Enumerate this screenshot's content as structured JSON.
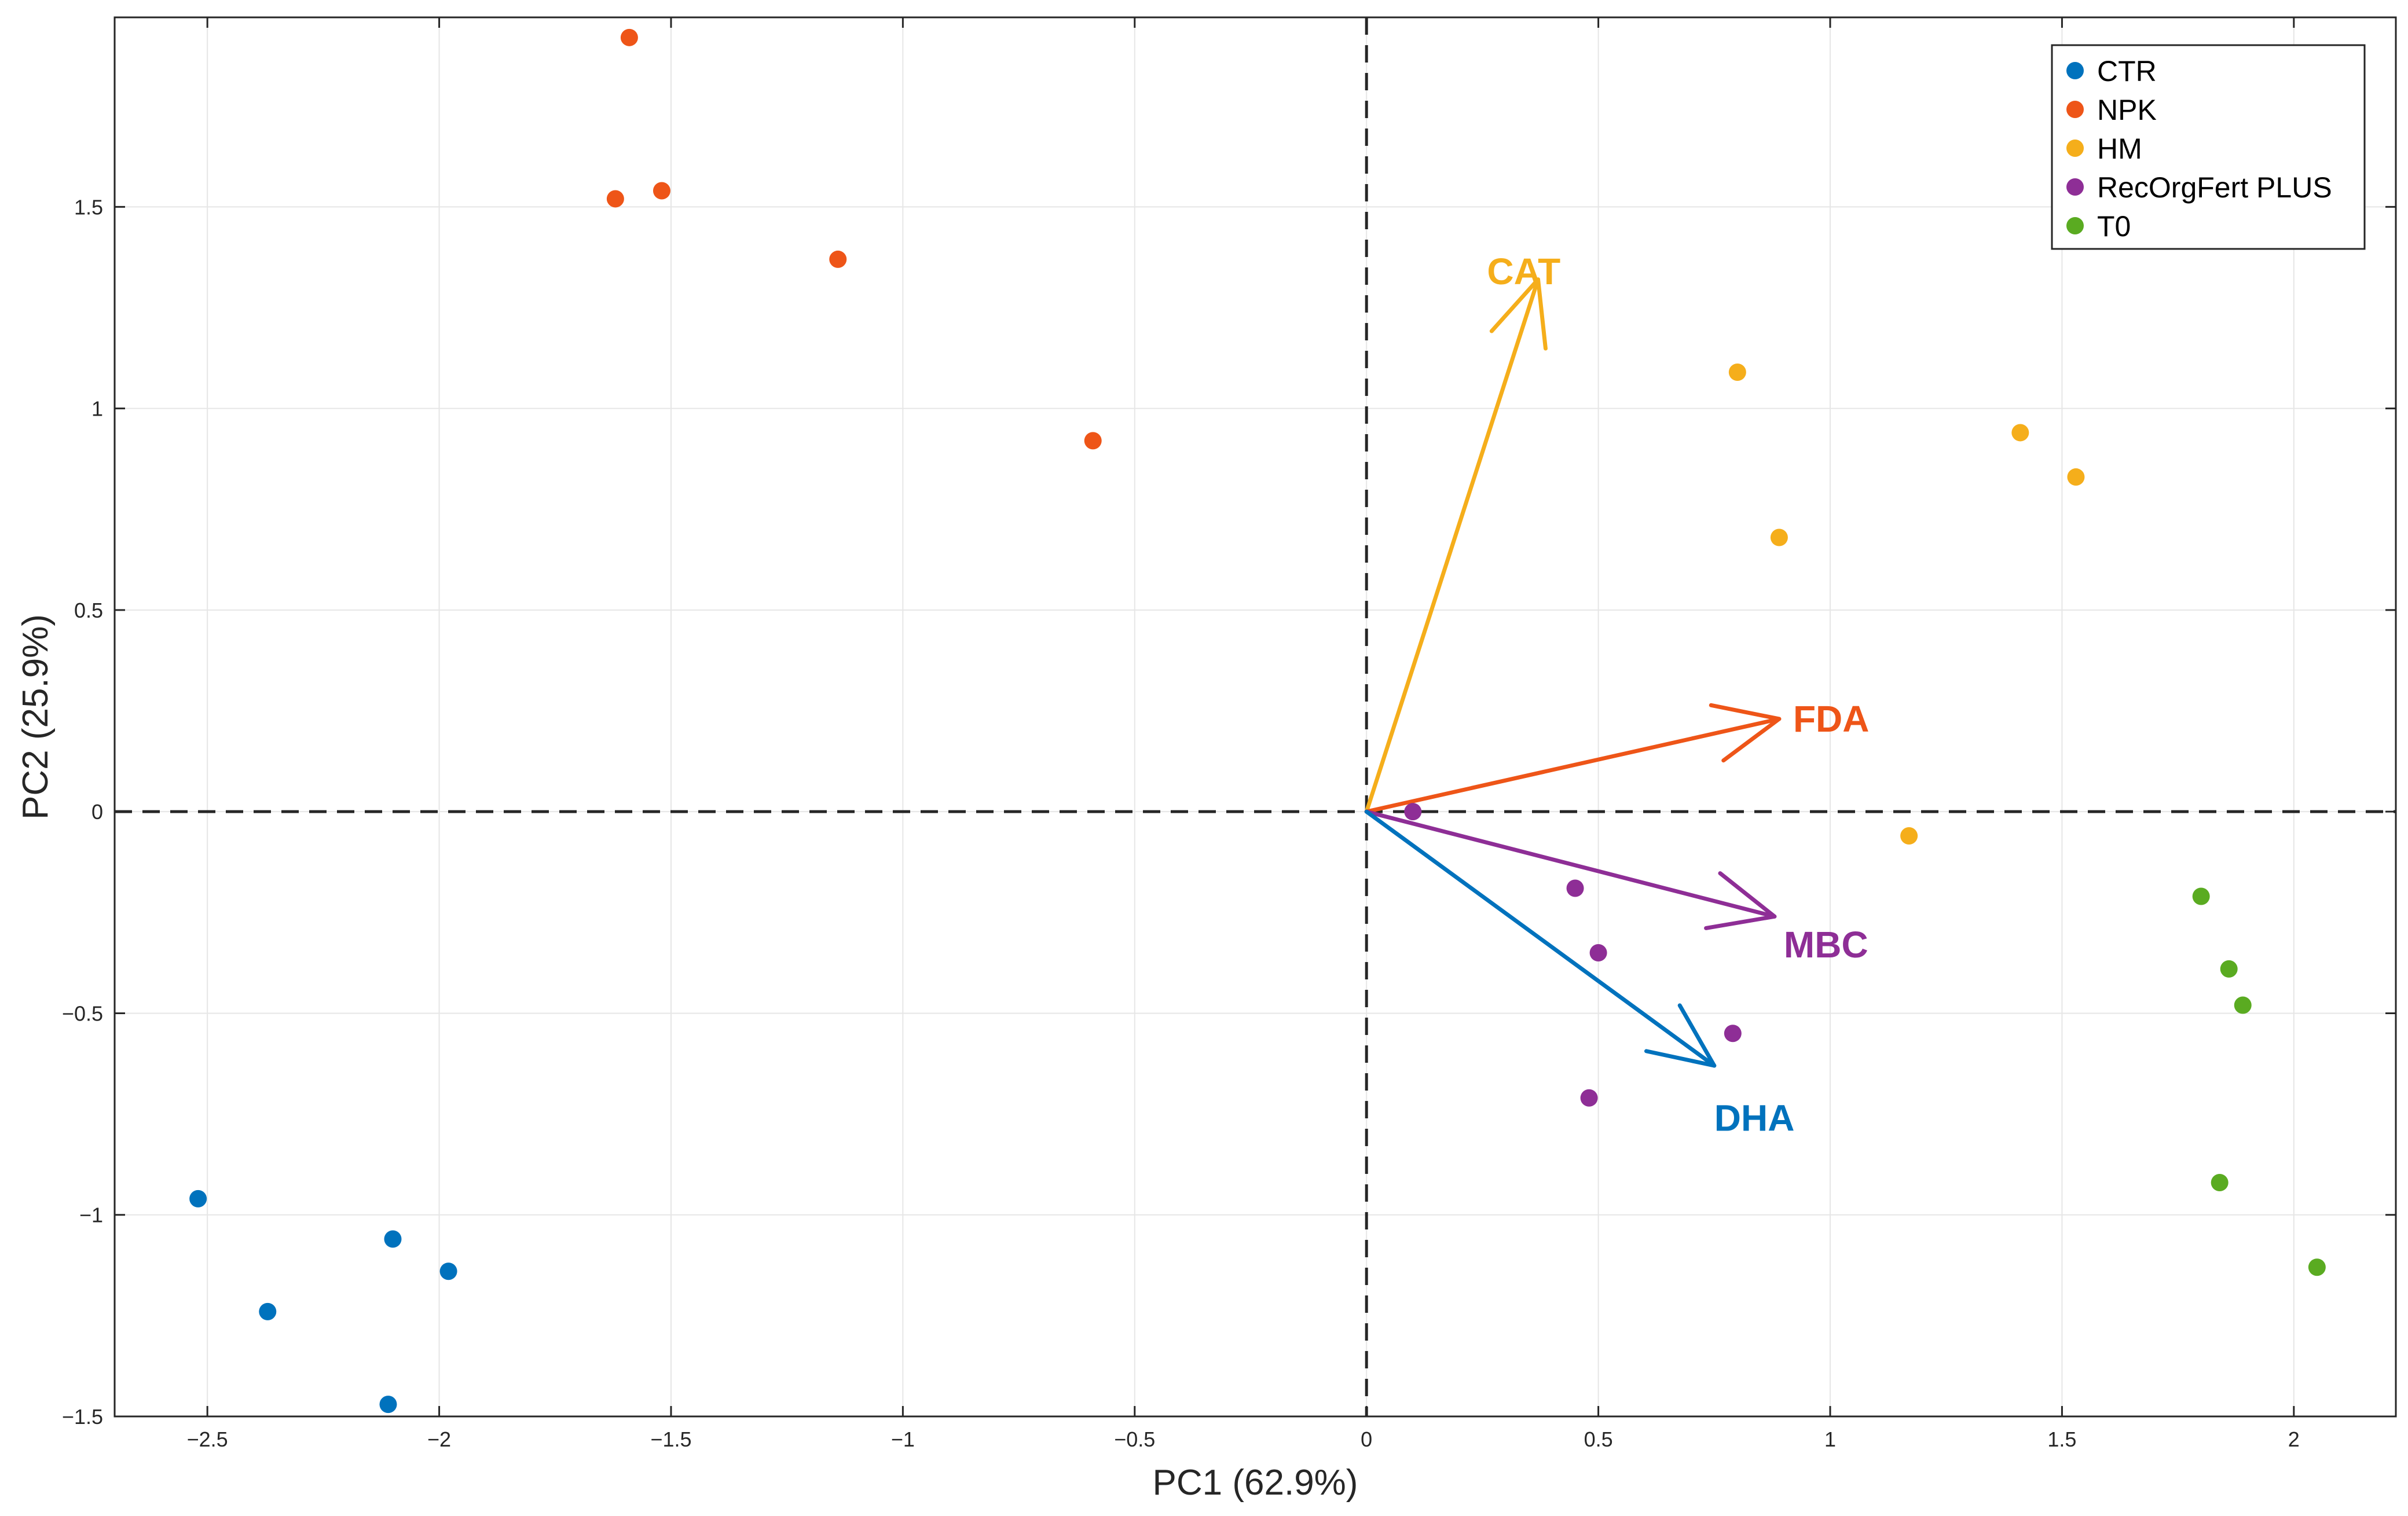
{
  "chart_data": {
    "type": "scatter",
    "title": "",
    "xlabel": "PC1 (62.9%)",
    "ylabel": "PC2 (25.9%)",
    "xlim": [
      -2.7,
      2.22
    ],
    "ylim": [
      -1.5,
      1.97
    ],
    "grid": true,
    "x_ticks": [
      -2.5,
      -2,
      -1.5,
      -1,
      -0.5,
      0,
      0.5,
      1,
      1.5,
      2
    ],
    "x_tick_labels": [
      "−2.5",
      "−2",
      "−1.5",
      "−1",
      "−0.5",
      "0",
      "0.5",
      "1",
      "1.5",
      "2"
    ],
    "y_ticks": [
      -1.5,
      -1,
      -0.5,
      0,
      0.5,
      1,
      1.5
    ],
    "y_tick_labels": [
      "−1.5",
      "−1",
      "−0.5",
      "0",
      "0.5",
      "1",
      "1.5"
    ],
    "zero_lines": true,
    "legend_position": "top-right",
    "series": [
      {
        "name": "CTR",
        "color": "#0072BD",
        "points": [
          [
            -2.52,
            -0.96
          ],
          [
            -2.37,
            -1.24
          ],
          [
            -2.1,
            -1.06
          ],
          [
            -1.98,
            -1.14
          ],
          [
            -2.11,
            -1.47
          ]
        ]
      },
      {
        "name": "NPK",
        "color": "#EE5518",
        "points": [
          [
            -1.59,
            1.92
          ],
          [
            -1.62,
            1.52
          ],
          [
            -1.52,
            1.54
          ],
          [
            -1.14,
            1.37
          ],
          [
            -0.59,
            0.92
          ]
        ]
      },
      {
        "name": "HM",
        "color": "#F5AE1B",
        "points": [
          [
            0.8,
            1.09
          ],
          [
            1.41,
            0.94
          ],
          [
            1.53,
            0.83
          ],
          [
            0.89,
            0.68
          ],
          [
            1.17,
            -0.06
          ]
        ]
      },
      {
        "name": "RecOrgFert PLUS",
        "color": "#8E2E96",
        "points": [
          [
            0.1,
            0.0
          ],
          [
            0.45,
            -0.19
          ],
          [
            0.5,
            -0.35
          ],
          [
            0.79,
            -0.55
          ],
          [
            0.48,
            -0.71
          ]
        ]
      },
      {
        "name": "T0",
        "color": "#5AAB21",
        "points": [
          [
            1.8,
            -0.21
          ],
          [
            1.86,
            -0.39
          ],
          [
            1.89,
            -0.48
          ],
          [
            1.84,
            -0.92
          ],
          [
            2.05,
            -1.13
          ]
        ]
      }
    ],
    "vectors": [
      {
        "label": "CAT",
        "color": "#F5AE1B",
        "end": [
          0.37,
          1.32
        ],
        "label_pos": [
          0.26,
          1.34
        ]
      },
      {
        "label": "FDA",
        "color": "#EE5518",
        "end": [
          0.89,
          0.23
        ],
        "label_pos": [
          0.92,
          0.23
        ]
      },
      {
        "label": "MBC",
        "color": "#8E2E96",
        "end": [
          0.88,
          -0.26
        ],
        "label_pos": [
          0.9,
          -0.33
        ]
      },
      {
        "label": "DHA",
        "color": "#0072BD",
        "end": [
          0.75,
          -0.63
        ],
        "label_pos": [
          0.75,
          -0.76
        ]
      }
    ]
  }
}
